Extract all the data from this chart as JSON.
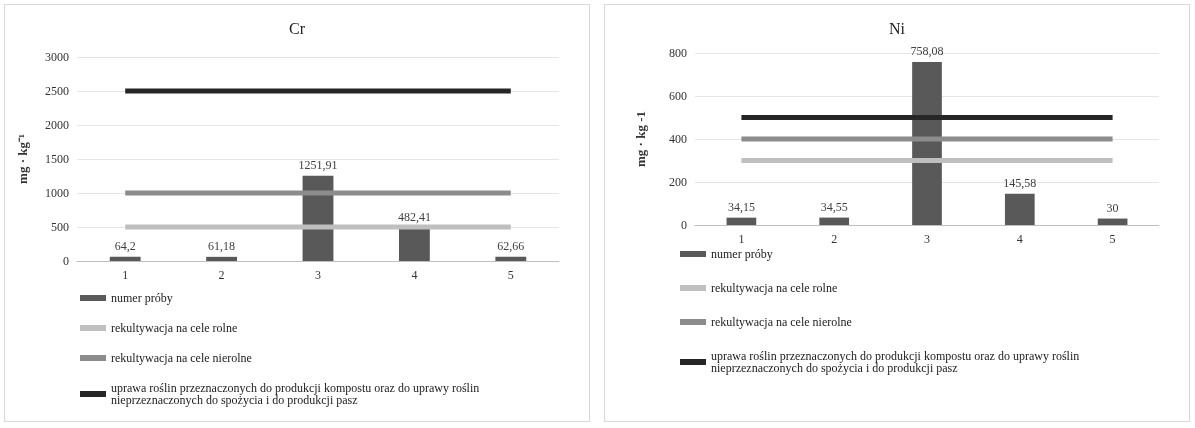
{
  "chart_data": [
    {
      "type": "bar",
      "title": "Cr",
      "ylabel": "mg · kg⁻¹",
      "categories": [
        "1",
        "2",
        "3",
        "4",
        "5"
      ],
      "ylim": [
        0,
        3000
      ],
      "yticks": [
        0,
        500,
        1000,
        1500,
        2000,
        2500,
        3000
      ],
      "grid": "y",
      "legend": "bottom",
      "marker": "none",
      "line_style": "solid",
      "series": [
        {
          "name": "numer próby",
          "color": "#595959",
          "values": [
            64.2,
            61.18,
            1251.91,
            482.41,
            62.66
          ],
          "value_labels": [
            "64,2",
            "61,18",
            "1251,91",
            "482,41",
            "62,66"
          ]
        },
        {
          "name": "rekultywacja na cele rolne",
          "type": "line",
          "color": "#bfbfbf",
          "values": [
            500,
            500,
            500,
            500,
            500
          ]
        },
        {
          "name": "rekultywacja na cele nierolne",
          "type": "line",
          "color": "#8c8c8c",
          "values": [
            1000,
            1000,
            1000,
            1000,
            1000
          ]
        },
        {
          "name": "uprawa roślin przeznaczonych do produkcji kompostu oraz do uprawy roślin nieprzeznaczonych do spożycia i do produkcji pasz",
          "type": "line",
          "color": "#262626",
          "values": [
            2500,
            2500,
            2500,
            2500,
            2500
          ]
        }
      ]
    },
    {
      "type": "bar",
      "title": "Ni",
      "ylabel": "mg · kg -1",
      "categories": [
        "1",
        "2",
        "3",
        "4",
        "5"
      ],
      "ylim": [
        0,
        800
      ],
      "yticks": [
        0,
        200,
        400,
        600,
        800
      ],
      "grid": "y",
      "legend": "bottom",
      "marker": "none",
      "line_style": "solid",
      "series": [
        {
          "name": "numer próby",
          "color": "#595959",
          "values": [
            34.15,
            34.55,
            758.08,
            145.58,
            30
          ],
          "value_labels": [
            "34,15",
            "34,55",
            "758,08",
            "145,58",
            "30"
          ]
        },
        {
          "name": "rekultywacja na cele rolne",
          "type": "line",
          "color": "#bfbfbf",
          "values": [
            300,
            300,
            300,
            300,
            300
          ]
        },
        {
          "name": "rekultywacja na cele nierolne",
          "type": "line",
          "color": "#8c8c8c",
          "values": [
            400,
            400,
            400,
            400,
            400
          ]
        },
        {
          "name": "uprawa roślin przeznaczonych do produkcji kompostu oraz do uprawy roślin nieprzeznaczonych do spożycia i do produkcji pasz",
          "type": "line",
          "color": "#262626",
          "values": [
            500,
            500,
            500,
            500,
            500
          ]
        }
      ]
    }
  ]
}
